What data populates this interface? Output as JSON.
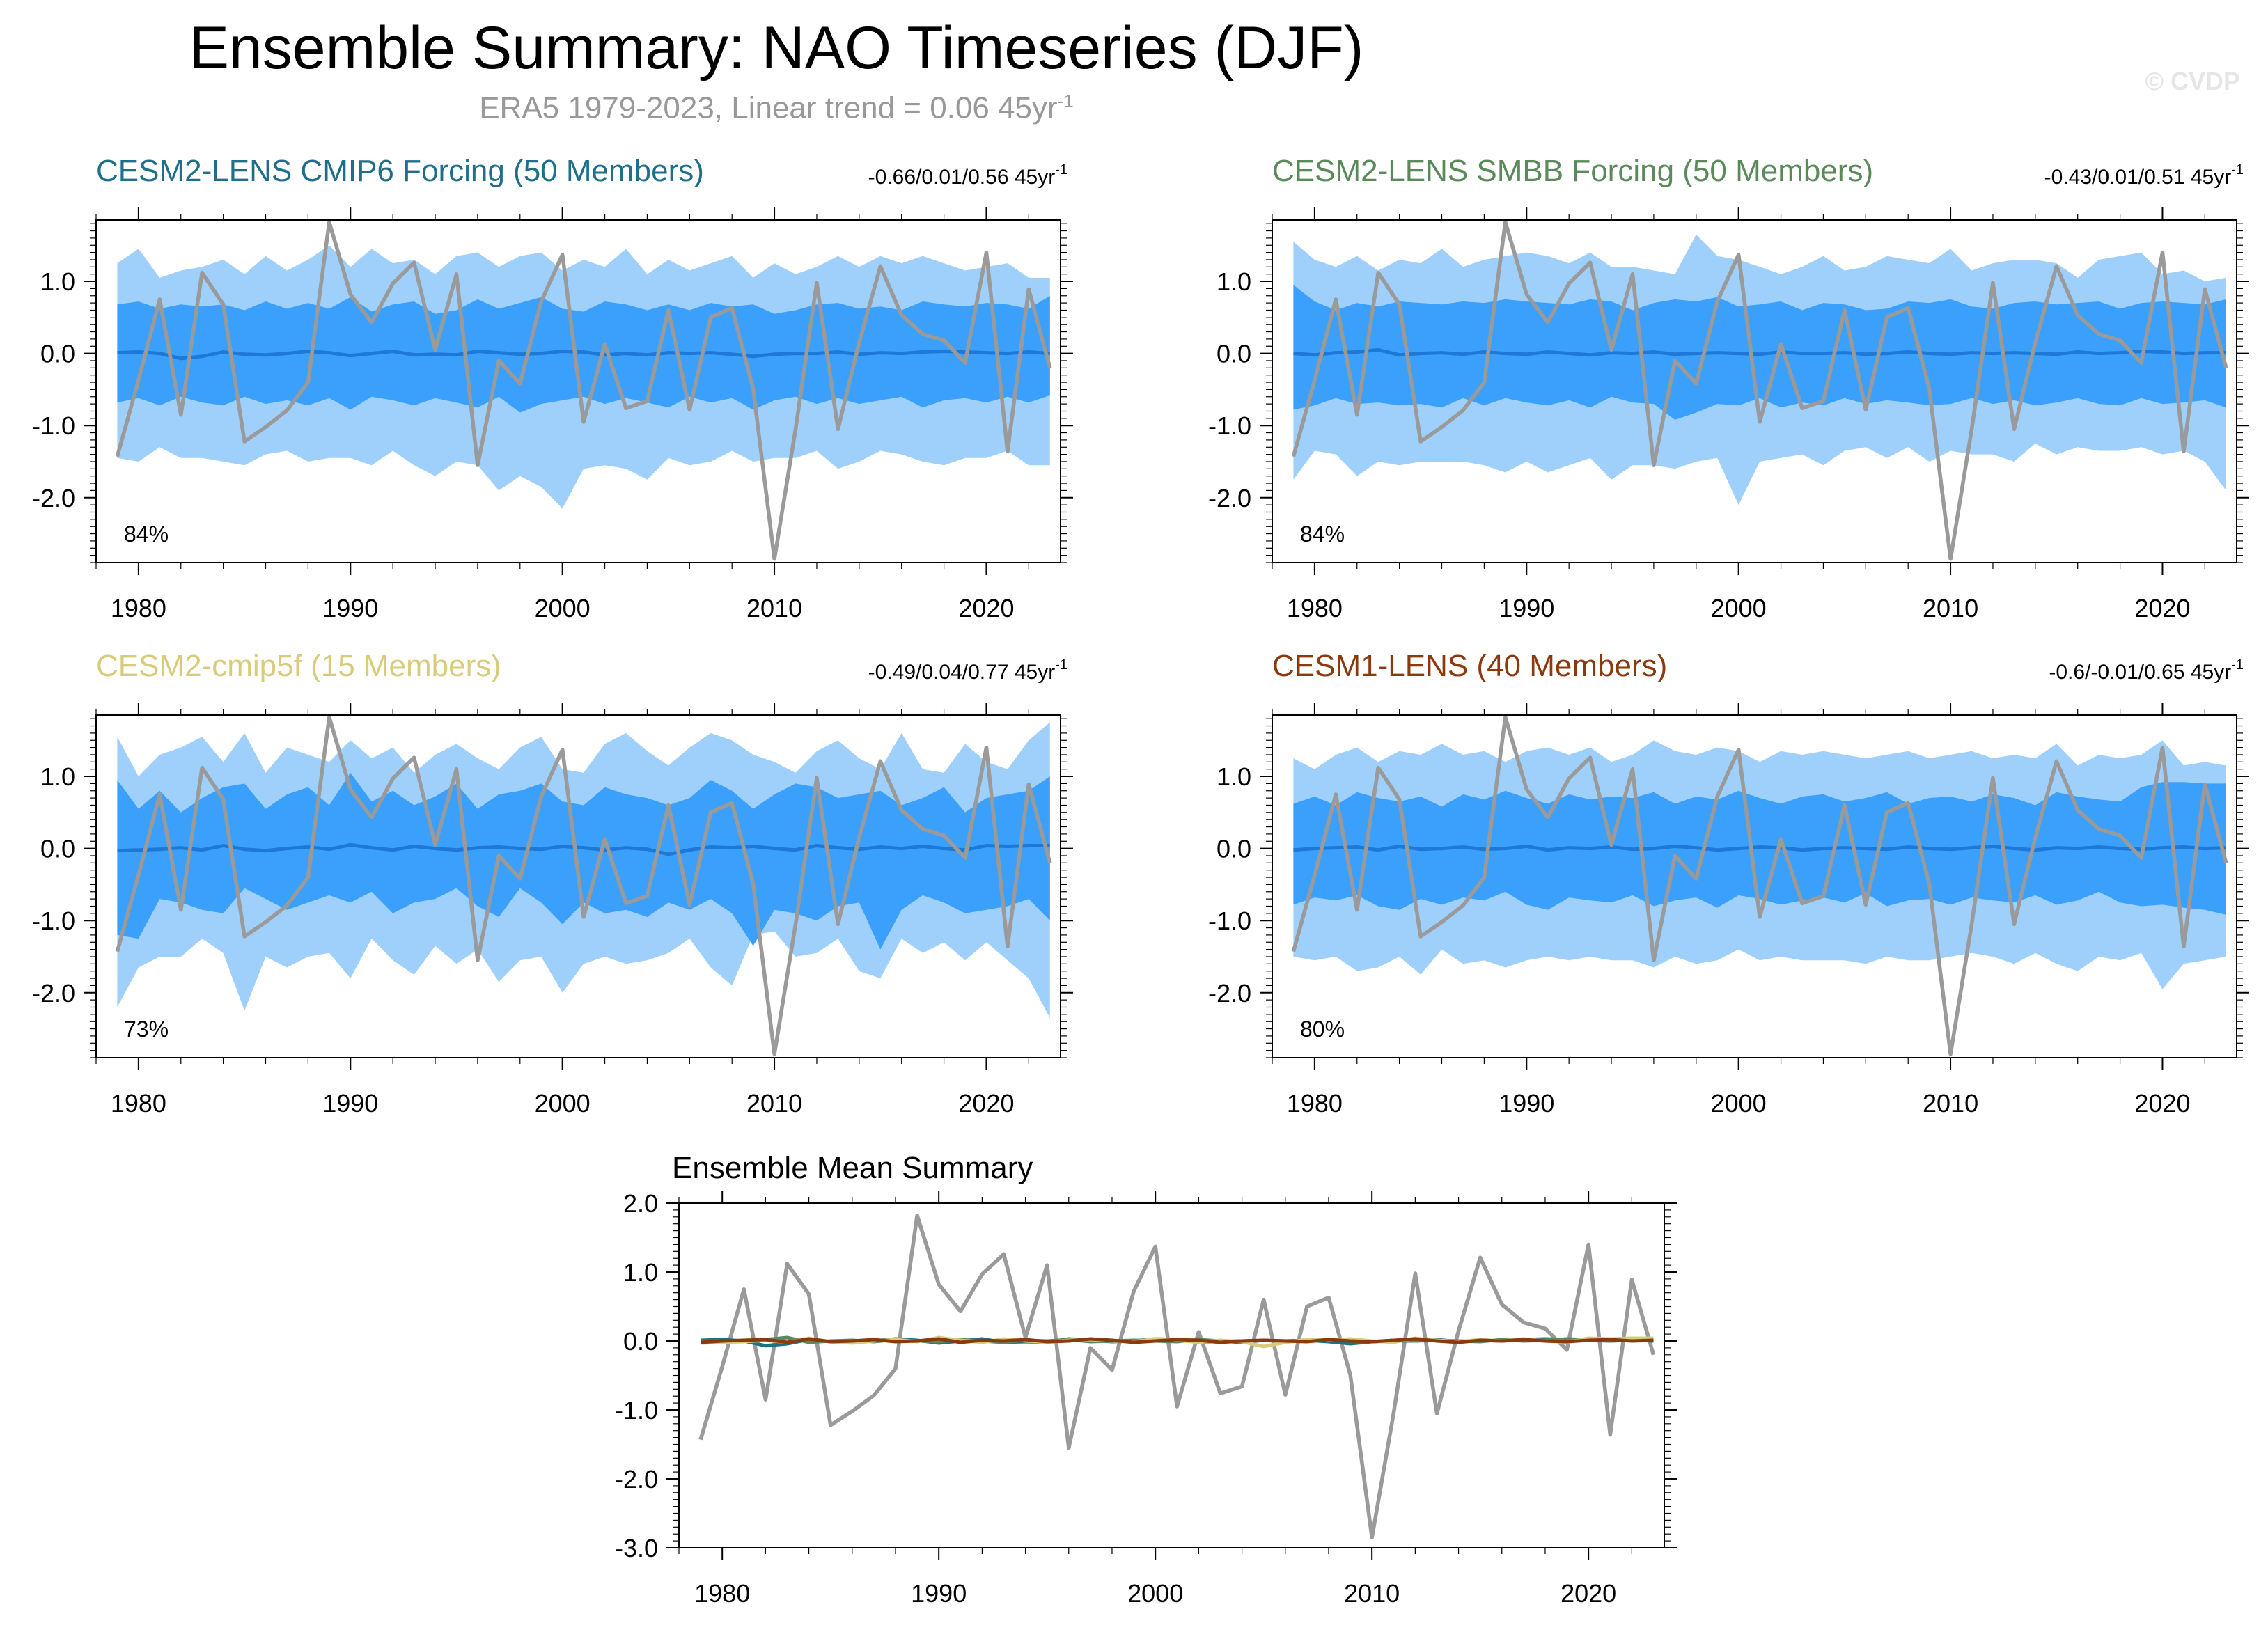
{
  "figure": {
    "title": "Ensemble Summary: NAO Timeseries (DJF)",
    "subtitle_main": "ERA5 1979-2023, Linear trend = 0.06 45yr",
    "subtitle_sup": "-1",
    "copyright": "© CVDP"
  },
  "colors": {
    "band_outer": "#9fd0fb",
    "band_inner": "#3ba0fb",
    "ens_mean": "#1e78d6",
    "obs": "#9a9a9a",
    "axis": "#000000"
  },
  "chart_data": [
    {
      "type": "area",
      "id": "cesm2-lens-cmip6",
      "title": "CESM2-LENS CMIP6 Forcing (50 Members)",
      "title_color": "#1f6f8b",
      "stats": "-0.66/0.01/0.56 45yr",
      "stats_sup": "-1",
      "percent": "84%",
      "ylim": [
        -2.9,
        1.85
      ],
      "yticks": [
        "1.0",
        "0.0",
        "-1.0",
        "-2.0"
      ],
      "ytick_values": [
        1.0,
        0.0,
        -1.0,
        -2.0
      ],
      "xticks": [
        "1980",
        "1990",
        "2000",
        "2010",
        "2020"
      ],
      "xtick_values": [
        1980,
        1990,
        2000,
        2010,
        2020
      ],
      "xlim": [
        1978,
        2023.5
      ],
      "ens_mean": [
        0.01,
        0.02,
        0.0,
        -0.07,
        -0.04,
        0.02,
        -0.01,
        -0.02,
        0.0,
        0.03,
        0.01,
        -0.03,
        0.0,
        0.03,
        -0.02,
        -0.01,
        -0.02,
        0.03,
        0.01,
        -0.01,
        0.0,
        0.03,
        0.02,
        -0.02,
        0.0,
        -0.02,
        0.01,
        0.0,
        0.01,
        -0.01,
        -0.04,
        -0.01,
        0.0,
        0.0,
        0.02,
        -0.01,
        0.01,
        0.0,
        0.02,
        0.03,
        0.02,
        0.01,
        0.0,
        0.02,
        0.0
      ],
      "inner_upper": [
        0.68,
        0.72,
        0.62,
        0.68,
        0.65,
        0.68,
        0.6,
        0.72,
        0.62,
        0.7,
        0.62,
        0.78,
        0.58,
        0.68,
        0.72,
        0.55,
        0.6,
        0.75,
        0.62,
        0.7,
        0.78,
        0.62,
        0.58,
        0.72,
        0.68,
        0.6,
        0.68,
        0.6,
        0.7,
        0.65,
        0.68,
        0.55,
        0.6,
        0.68,
        0.7,
        0.62,
        0.65,
        0.6,
        0.72,
        0.68,
        0.65,
        0.7,
        0.68,
        0.62,
        0.8
      ],
      "inner_lower": [
        -0.68,
        -0.62,
        -0.72,
        -0.6,
        -0.68,
        -0.72,
        -0.6,
        -0.7,
        -0.65,
        -0.72,
        -0.62,
        -0.78,
        -0.6,
        -0.65,
        -0.72,
        -0.62,
        -0.68,
        -0.75,
        -0.6,
        -0.82,
        -0.7,
        -0.65,
        -0.6,
        -0.7,
        -0.62,
        -0.68,
        -0.75,
        -0.6,
        -0.68,
        -0.62,
        -0.78,
        -0.65,
        -0.6,
        -0.7,
        -0.62,
        -0.7,
        -0.65,
        -0.6,
        -0.75,
        -0.65,
        -0.62,
        -0.68,
        -0.6,
        -0.68,
        -0.58
      ],
      "outer_upper": [
        1.25,
        1.45,
        1.05,
        1.15,
        1.2,
        1.3,
        1.1,
        1.35,
        1.15,
        1.3,
        1.5,
        1.2,
        1.45,
        1.25,
        1.3,
        1.1,
        1.35,
        1.4,
        1.2,
        1.35,
        1.4,
        1.15,
        1.3,
        1.2,
        1.45,
        1.1,
        1.3,
        1.15,
        1.25,
        1.35,
        1.05,
        1.25,
        1.1,
        1.2,
        1.35,
        1.2,
        1.35,
        1.25,
        1.35,
        1.25,
        1.15,
        1.2,
        1.25,
        1.05,
        1.05
      ],
      "outer_lower": [
        -1.45,
        -1.5,
        -1.3,
        -1.45,
        -1.45,
        -1.5,
        -1.55,
        -1.4,
        -1.35,
        -1.5,
        -1.45,
        -1.45,
        -1.55,
        -1.35,
        -1.55,
        -1.7,
        -1.5,
        -1.55,
        -1.9,
        -1.7,
        -1.85,
        -2.15,
        -1.6,
        -1.55,
        -1.6,
        -1.75,
        -1.45,
        -1.55,
        -1.5,
        -1.35,
        -1.5,
        -1.45,
        -1.45,
        -1.35,
        -1.6,
        -1.5,
        -1.35,
        -1.4,
        -1.5,
        -1.55,
        -1.45,
        -1.45,
        -1.35,
        -1.55,
        -1.55
      ]
    },
    {
      "type": "area",
      "id": "cesm2-lens-smbb",
      "title": "CESM2-LENS SMBB Forcing (50 Members)",
      "title_color": "#5a8a5a",
      "stats": "-0.43/0.01/0.51 45yr",
      "stats_sup": "-1",
      "percent": "84%",
      "ylim": [
        -2.9,
        1.85
      ],
      "yticks": [
        "1.0",
        "0.0",
        "-1.0",
        "-2.0"
      ],
      "ytick_values": [
        1.0,
        0.0,
        -1.0,
        -2.0
      ],
      "xticks": [
        "1980",
        "1990",
        "2000",
        "2010",
        "2020"
      ],
      "xtick_values": [
        1980,
        1990,
        2000,
        2010,
        2020
      ],
      "xlim": [
        1978,
        2023.5
      ],
      "ens_mean": [
        0.0,
        -0.02,
        0.01,
        0.02,
        0.05,
        -0.02,
        0.0,
        0.01,
        -0.01,
        0.02,
        0.0,
        -0.01,
        0.02,
        0.0,
        -0.02,
        0.01,
        0.0,
        0.02,
        -0.01,
        0.0,
        0.01,
        0.0,
        -0.01,
        0.02,
        0.0,
        0.0,
        0.01,
        -0.01,
        0.0,
        0.02,
        0.0,
        -0.01,
        0.01,
        0.0,
        0.01,
        0.0,
        -0.01,
        0.02,
        0.0,
        0.01,
        0.03,
        0.02,
        0.0,
        0.01,
        0.01
      ],
      "inner_upper": [
        0.95,
        0.72,
        0.6,
        0.7,
        0.65,
        0.72,
        0.7,
        0.68,
        0.72,
        0.7,
        0.75,
        0.72,
        0.7,
        0.68,
        0.75,
        0.72,
        0.6,
        0.7,
        0.75,
        0.72,
        0.78,
        0.65,
        0.68,
        0.72,
        0.6,
        0.7,
        0.68,
        0.6,
        0.62,
        0.72,
        0.7,
        0.75,
        0.65,
        0.62,
        0.7,
        0.72,
        0.68,
        0.7,
        0.72,
        0.62,
        0.7,
        0.72,
        0.7,
        0.68,
        0.75
      ],
      "inner_lower": [
        -0.78,
        -0.72,
        -0.62,
        -0.7,
        -0.68,
        -0.72,
        -0.7,
        -0.75,
        -0.62,
        -0.72,
        -0.62,
        -0.68,
        -0.72,
        -0.65,
        -0.75,
        -0.6,
        -0.68,
        -0.7,
        -0.92,
        -0.82,
        -0.7,
        -0.72,
        -0.62,
        -0.75,
        -0.68,
        -0.72,
        -0.62,
        -0.7,
        -0.65,
        -0.68,
        -0.72,
        -0.7,
        -0.62,
        -0.7,
        -0.65,
        -0.72,
        -0.68,
        -0.62,
        -0.7,
        -0.72,
        -0.62,
        -0.7,
        -0.68,
        -0.65,
        -0.75
      ],
      "outer_upper": [
        1.55,
        1.3,
        1.2,
        1.35,
        1.15,
        1.3,
        1.25,
        1.45,
        1.2,
        1.3,
        1.35,
        1.4,
        1.35,
        1.25,
        1.4,
        1.2,
        1.2,
        1.15,
        1.1,
        1.65,
        1.35,
        1.3,
        1.2,
        1.1,
        1.2,
        1.35,
        1.15,
        1.2,
        1.35,
        1.3,
        1.25,
        1.45,
        1.15,
        1.25,
        1.3,
        1.3,
        1.25,
        1.05,
        1.3,
        1.35,
        1.4,
        1.1,
        1.15,
        1.0,
        1.05
      ],
      "outer_lower": [
        -1.75,
        -1.35,
        -1.4,
        -1.7,
        -1.5,
        -1.55,
        -1.5,
        -1.5,
        -1.5,
        -1.55,
        -1.65,
        -1.5,
        -1.65,
        -1.55,
        -1.45,
        -1.75,
        -1.55,
        -1.55,
        -1.6,
        -1.5,
        -1.45,
        -2.1,
        -1.5,
        -1.45,
        -1.4,
        -1.55,
        -1.35,
        -1.3,
        -1.45,
        -1.3,
        -1.5,
        -1.35,
        -1.4,
        -1.4,
        -1.5,
        -1.25,
        -1.4,
        -1.3,
        -1.35,
        -1.35,
        -1.3,
        -1.4,
        -1.35,
        -1.5,
        -1.9
      ]
    },
    {
      "type": "area",
      "id": "cesm2-cmip5f",
      "title": "CESM2-cmip5f (15 Members)",
      "title_color": "#d8cc7a",
      "stats": "-0.49/0.04/0.77 45yr",
      "stats_sup": "-1",
      "percent": "73%",
      "ylim": [
        -2.9,
        1.85
      ],
      "yticks": [
        "1.0",
        "0.0",
        "-1.0",
        "-2.0"
      ],
      "ytick_values": [
        1.0,
        0.0,
        -1.0,
        -2.0
      ],
      "xticks": [
        "1980",
        "1990",
        "2000",
        "2010",
        "2020"
      ],
      "xtick_values": [
        1980,
        1990,
        2000,
        2010,
        2020
      ],
      "xlim": [
        1978,
        2023.5
      ],
      "ens_mean": [
        -0.03,
        -0.02,
        -0.01,
        0.01,
        -0.02,
        0.04,
        -0.01,
        -0.03,
        0.0,
        0.02,
        -0.01,
        0.05,
        0.01,
        -0.02,
        0.03,
        0.0,
        -0.02,
        0.01,
        0.02,
        0.0,
        -0.01,
        0.03,
        0.01,
        -0.02,
        0.01,
        -0.01,
        -0.08,
        -0.02,
        0.02,
        0.01,
        0.03,
        0.0,
        -0.02,
        0.04,
        0.01,
        -0.01,
        0.02,
        0.0,
        0.03,
        0.0,
        -0.02,
        0.04,
        0.03,
        0.04,
        0.04
      ],
      "inner_upper": [
        0.95,
        0.55,
        0.8,
        0.5,
        0.7,
        0.85,
        0.9,
        0.55,
        0.75,
        0.85,
        0.6,
        1.05,
        0.65,
        0.8,
        0.6,
        0.72,
        0.9,
        0.55,
        0.75,
        0.8,
        0.9,
        0.65,
        0.6,
        0.85,
        0.75,
        0.7,
        0.6,
        0.7,
        0.95,
        0.8,
        0.55,
        0.75,
        0.9,
        0.85,
        0.7,
        0.75,
        0.8,
        0.6,
        0.7,
        0.85,
        0.5,
        0.7,
        0.75,
        0.8,
        1.0
      ],
      "inner_lower": [
        -1.2,
        -1.25,
        -0.7,
        -0.75,
        -0.85,
        -0.9,
        -0.55,
        -0.7,
        -0.85,
        -0.75,
        -0.65,
        -0.75,
        -0.6,
        -0.9,
        -0.75,
        -0.7,
        -0.55,
        -0.8,
        -0.95,
        -0.55,
        -0.75,
        -1.05,
        -0.75,
        -0.9,
        -0.85,
        -0.95,
        -0.75,
        -0.85,
        -0.7,
        -0.9,
        -1.35,
        -0.85,
        -0.9,
        -1.0,
        -0.8,
        -0.75,
        -1.4,
        -0.85,
        -0.65,
        -0.75,
        -0.9,
        -0.85,
        -0.8,
        -0.7,
        -1.0
      ],
      "outer_upper": [
        1.55,
        1.0,
        1.3,
        1.4,
        1.55,
        1.2,
        1.6,
        1.05,
        1.4,
        1.3,
        1.2,
        1.5,
        1.25,
        1.4,
        1.05,
        1.3,
        1.45,
        1.25,
        1.1,
        1.4,
        1.55,
        1.1,
        1.05,
        1.45,
        1.6,
        1.35,
        1.15,
        1.4,
        1.6,
        1.5,
        1.3,
        1.2,
        1.05,
        1.35,
        1.5,
        1.25,
        1.1,
        1.6,
        1.1,
        1.05,
        1.45,
        1.2,
        1.1,
        1.5,
        1.75
      ],
      "outer_lower": [
        -2.2,
        -1.65,
        -1.5,
        -1.5,
        -1.25,
        -1.45,
        -2.25,
        -1.5,
        -1.65,
        -1.5,
        -1.45,
        -1.8,
        -1.25,
        -1.55,
        -1.75,
        -1.35,
        -1.6,
        -1.4,
        -1.85,
        -1.55,
        -1.5,
        -2.0,
        -1.6,
        -1.5,
        -1.6,
        -1.55,
        -1.45,
        -1.25,
        -1.65,
        -1.9,
        -1.2,
        -1.15,
        -1.5,
        -1.45,
        -1.25,
        -1.7,
        -1.8,
        -1.25,
        -1.45,
        -1.3,
        -1.55,
        -1.3,
        -1.55,
        -1.8,
        -2.35
      ]
    },
    {
      "type": "area",
      "id": "cesm1-lens",
      "title": "CESM1-LENS (40 Members)",
      "title_color": "#8b3a0e",
      "stats": "-0.6/-0.01/0.65 45yr",
      "stats_sup": "-1",
      "percent": "80%",
      "ylim": [
        -2.9,
        1.85
      ],
      "yticks": [
        "1.0",
        "0.0",
        "-1.0",
        "-2.0"
      ],
      "ytick_values": [
        1.0,
        0.0,
        -1.0,
        -2.0
      ],
      "xticks": [
        "1980",
        "1990",
        "2000",
        "2010",
        "2020"
      ],
      "xtick_values": [
        1980,
        1990,
        2000,
        2010,
        2020
      ],
      "xlim": [
        1978,
        2023.5
      ],
      "ens_mean": [
        -0.02,
        0.0,
        0.01,
        0.02,
        -0.02,
        0.03,
        -0.01,
        0.0,
        0.02,
        -0.01,
        0.0,
        0.03,
        -0.02,
        0.01,
        0.0,
        0.02,
        -0.01,
        0.0,
        0.03,
        0.01,
        -0.02,
        0.0,
        0.02,
        0.01,
        -0.02,
        0.0,
        0.01,
        0.0,
        -0.01,
        0.02,
        0.0,
        -0.01,
        0.01,
        0.03,
        0.0,
        -0.02,
        0.01,
        0.0,
        0.02,
        0.0,
        -0.01,
        0.01,
        0.02,
        0.0,
        0.01
      ],
      "inner_upper": [
        0.62,
        0.72,
        0.6,
        0.78,
        0.7,
        0.65,
        0.72,
        0.58,
        0.75,
        0.68,
        0.8,
        0.7,
        0.62,
        0.75,
        0.68,
        0.72,
        0.7,
        0.78,
        0.62,
        0.72,
        0.68,
        0.8,
        0.7,
        0.62,
        0.72,
        0.75,
        0.65,
        0.7,
        0.78,
        0.62,
        0.7,
        0.72,
        0.65,
        0.75,
        0.7,
        0.6,
        0.78,
        0.72,
        0.68,
        0.65,
        0.85,
        0.92,
        0.92,
        0.9,
        0.9
      ],
      "inner_lower": [
        -0.78,
        -0.68,
        -0.72,
        -0.65,
        -0.8,
        -0.85,
        -0.7,
        -0.78,
        -0.68,
        -0.72,
        -0.6,
        -0.78,
        -0.85,
        -0.68,
        -0.72,
        -0.75,
        -0.65,
        -0.8,
        -0.72,
        -0.68,
        -0.82,
        -0.65,
        -0.7,
        -0.78,
        -0.72,
        -0.68,
        -0.75,
        -0.62,
        -0.8,
        -0.72,
        -0.7,
        -0.78,
        -0.68,
        -0.72,
        -0.75,
        -0.65,
        -0.78,
        -0.72,
        -0.6,
        -0.75,
        -0.8,
        -0.78,
        -0.82,
        -0.85,
        -0.92
      ],
      "outer_upper": [
        1.25,
        1.1,
        1.3,
        1.4,
        1.2,
        1.35,
        1.3,
        1.45,
        1.3,
        1.35,
        1.2,
        1.35,
        1.4,
        1.3,
        1.4,
        1.2,
        1.3,
        1.5,
        1.35,
        1.3,
        1.4,
        1.35,
        1.2,
        1.35,
        1.3,
        1.35,
        1.3,
        1.25,
        1.3,
        1.35,
        1.25,
        1.3,
        1.35,
        1.25,
        1.3,
        1.25,
        1.45,
        1.15,
        1.3,
        1.25,
        1.3,
        1.5,
        1.15,
        1.2,
        1.15
      ],
      "outer_lower": [
        -1.5,
        -1.55,
        -1.5,
        -1.7,
        -1.65,
        -1.5,
        -1.75,
        -1.4,
        -1.6,
        -1.55,
        -1.65,
        -1.55,
        -1.5,
        -1.55,
        -1.5,
        -1.55,
        -1.55,
        -1.65,
        -1.5,
        -1.6,
        -1.55,
        -1.4,
        -1.55,
        -1.5,
        -1.55,
        -1.55,
        -1.55,
        -1.6,
        -1.5,
        -1.55,
        -1.55,
        -1.5,
        -1.45,
        -1.5,
        -1.6,
        -1.45,
        -1.6,
        -1.7,
        -1.5,
        -1.55,
        -1.45,
        -1.95,
        -1.6,
        -1.55,
        -1.5
      ]
    },
    {
      "type": "line",
      "id": "ensemble-mean-summary",
      "title": "Ensemble Mean Summary",
      "ylim": [
        -3.0,
        2.0
      ],
      "yticks": [
        "2.0",
        "1.0",
        "0.0",
        "-1.0",
        "-2.0",
        "-3.0"
      ],
      "ytick_values": [
        2.0,
        1.0,
        0.0,
        -1.0,
        -2.0,
        -3.0
      ],
      "xticks": [
        "1980",
        "1990",
        "2000",
        "2010",
        "2020"
      ],
      "xtick_values": [
        1980,
        1990,
        2000,
        2010,
        2020
      ],
      "xlim": [
        1978,
        2023.5
      ],
      "series": [
        {
          "name": "CESM2-LENS CMIP6 Forcing",
          "color": "#1f6f8b",
          "ref": 0
        },
        {
          "name": "CESM2-LENS SMBB Forcing",
          "color": "#5a8a5a",
          "ref": 1
        },
        {
          "name": "CESM2-cmip5f",
          "color": "#d8cc7a",
          "ref": 2
        },
        {
          "name": "CESM1-LENS",
          "color": "#8b3a0e",
          "ref": 3
        }
      ]
    }
  ],
  "observations": {
    "name": "ERA5",
    "x_start": 1979,
    "values": [
      -1.43,
      -0.37,
      0.75,
      -0.85,
      1.12,
      0.68,
      -1.22,
      -1.02,
      -0.79,
      -0.4,
      1.82,
      0.82,
      0.43,
      0.97,
      1.26,
      0.05,
      1.1,
      -1.55,
      -0.1,
      -0.42,
      0.72,
      1.37,
      -0.95,
      0.13,
      -0.76,
      -0.66,
      0.6,
      -0.78,
      0.5,
      0.63,
      -0.49,
      -2.85,
      -1.05,
      0.98,
      -1.05,
      0.15,
      1.21,
      0.53,
      0.27,
      0.18,
      -0.13,
      1.4,
      -1.36,
      0.89,
      -0.2
    ]
  }
}
